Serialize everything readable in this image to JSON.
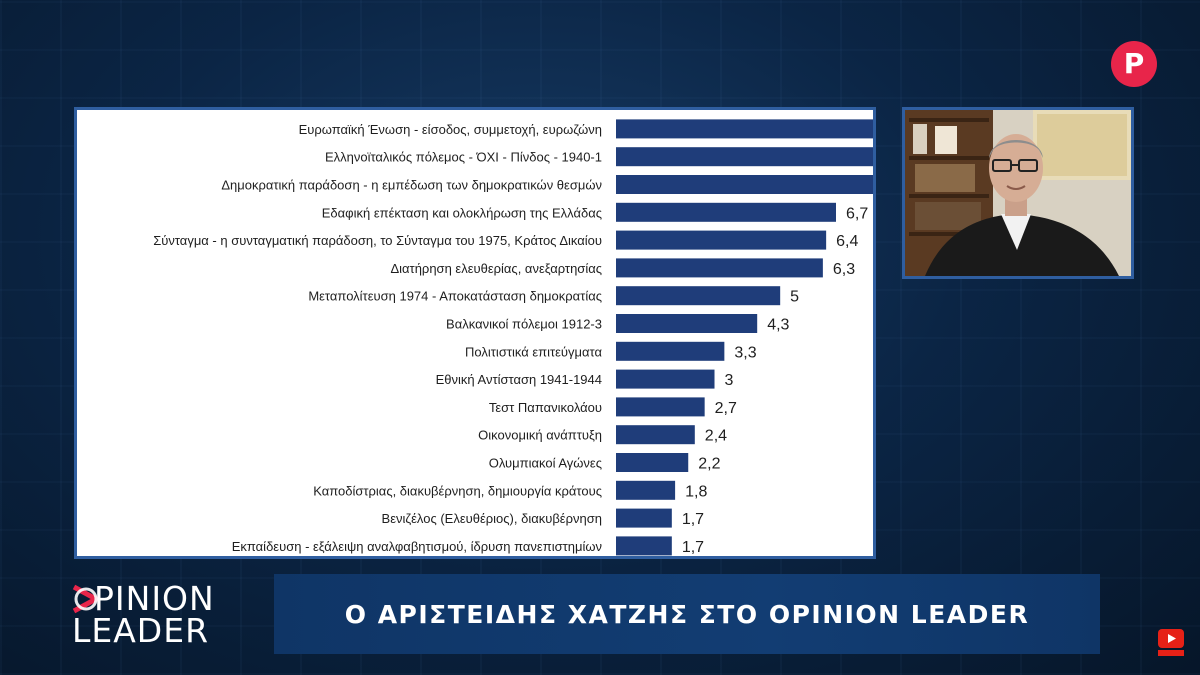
{
  "chart_data": {
    "type": "bar",
    "orientation": "horizontal",
    "categories": [
      "Ευρωπαϊκή Ένωση - είσοδος, συμμετοχή, ευρωζώνη",
      "Ελληνοϊταλικός πόλεμος - ΌΧΙ - Πίνδος - 1940-1",
      "Δημοκρατική παράδοση - η εμπέδωση των δημοκρατικών θεσμών",
      "Εδαφική επέκταση και ολοκλήρωση της Ελλάδας",
      "Σύνταγμα - η συνταγματική παράδοση, το Σύνταγμα του 1975, Κράτος Δικαίου",
      "Διατήρηση ελευθερίας, ανεξαρτησίας",
      "Μεταπολίτευση 1974 - Αποκατάσταση δημοκρατίας",
      "Βαλκανικοί πόλεμοι 1912-3",
      "Πολιτιστικά επιτεύγματα",
      "Εθνική Αντίσταση 1941-1944",
      "Τεστ Παπανικολάου",
      "Οικονομική ανάπτυξη",
      "Ολυμπιακοί Αγώνες",
      "Καποδίστριας, διακυβέρνηση, δημιουργία κράτους",
      "Βενιζέλος (Ελευθέριος), διακυβέρνηση",
      "Εκπαίδευση - εξάλειψη αναλφαβητισμού, ίδρυση πανεπιστημίων"
    ],
    "values": [
      null,
      null,
      null,
      6.7,
      6.4,
      6.3,
      5,
      4.3,
      3.3,
      3,
      2.7,
      2.4,
      2.2,
      1.8,
      1.7,
      1.7
    ],
    "value_labels": [
      "",
      "",
      "",
      "6,7",
      "6,4",
      "6,3",
      "5",
      "4,3",
      "3,3",
      "3",
      "2,7",
      "2,4",
      "2,2",
      "1,8",
      "1,7",
      "1,7"
    ],
    "truncated_bars": [
      0,
      1,
      2
    ],
    "xlim": [
      0,
      6.7
    ],
    "grid": false,
    "bar_color": "#1f3d7a",
    "title": "",
    "xlabel": "",
    "ylabel": ""
  },
  "channel": {
    "logo_letter": "P",
    "logo_color": "#e8254a"
  },
  "brand": {
    "line1": "PINION",
    "line2": "LEADER",
    "accent_color": "#e8254a"
  },
  "lower_third": {
    "text": "Ο ΑΡΙΣΤΕΙΔΗΣ ΧΑΤΖΗΣ ΣΤΟ OPINION LEADER"
  },
  "icons": {
    "subscribe": "youtube-subscribe-icon",
    "video": "guest-video-feed"
  }
}
